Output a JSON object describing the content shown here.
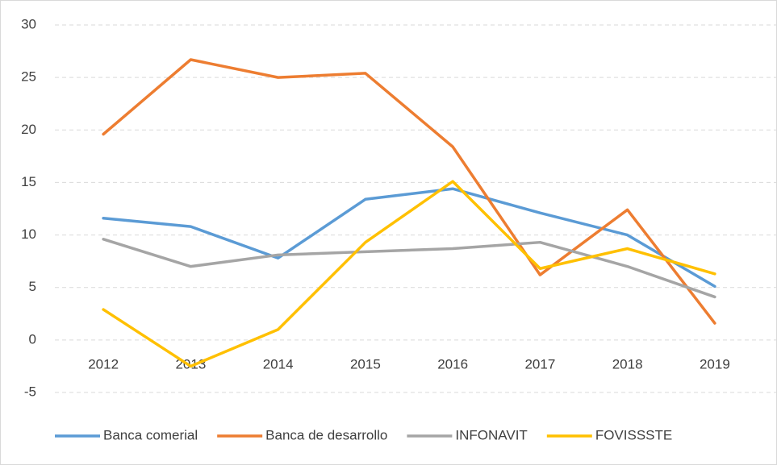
{
  "chart_data": {
    "type": "line",
    "categories": [
      "2012",
      "2013",
      "2014",
      "2015",
      "2016",
      "2017",
      "2018",
      "2019"
    ],
    "series": [
      {
        "name": "Banca comerial",
        "color": "#5b9bd5",
        "values": [
          11.6,
          10.8,
          7.8,
          13.4,
          14.4,
          12.1,
          10.0,
          5.1
        ]
      },
      {
        "name": "Banca de desarrollo",
        "color": "#ed7d31",
        "values": [
          19.6,
          26.7,
          25.0,
          25.4,
          18.4,
          6.2,
          12.4,
          1.6
        ]
      },
      {
        "name": "INFONAVIT",
        "color": "#a5a5a5",
        "values": [
          9.6,
          7.0,
          8.1,
          8.4,
          8.7,
          9.3,
          7.0,
          4.1
        ]
      },
      {
        "name": "FOVISSSTE",
        "color": "#ffc000",
        "values": [
          2.9,
          -2.5,
          1.0,
          9.3,
          15.1,
          6.8,
          8.7,
          6.3
        ]
      }
    ],
    "ylim": [
      -5,
      30
    ],
    "yticks": [
      -5,
      0,
      5,
      10,
      15,
      20,
      25,
      30
    ],
    "grid": true,
    "legend": "bottom"
  }
}
